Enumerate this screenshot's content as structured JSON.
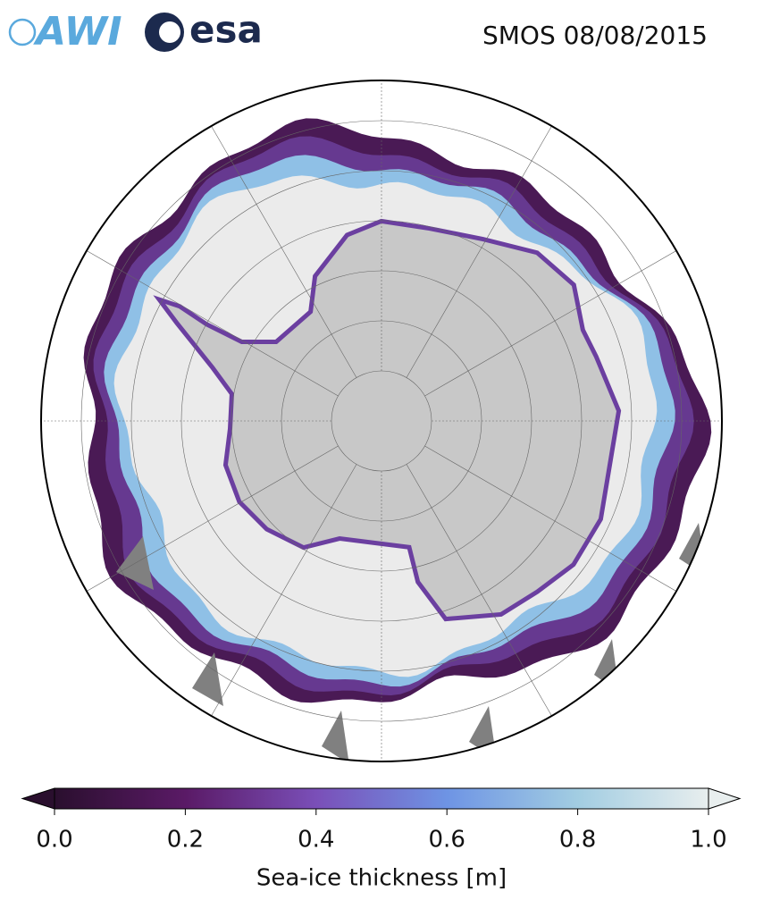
{
  "logos": {
    "awi": "AWI",
    "esa": "esa"
  },
  "title": "SMOS 08/08/2015",
  "colorbar": {
    "label": "Sea-ice thickness [m]",
    "lim": [
      0,
      1
    ],
    "ticks": [
      {
        "value": 0,
        "label": "0.0"
      },
      {
        "value": 0.2,
        "label": "0.2"
      },
      {
        "value": 0.4,
        "label": "0.4"
      },
      {
        "value": 0.6,
        "label": "0.6"
      },
      {
        "value": 0.8,
        "label": "0.8"
      },
      {
        "value": 1,
        "label": "1.0"
      }
    ],
    "colormap": [
      "#2a0f2e",
      "#5a1a66",
      "#7a4fb8",
      "#6e94e4",
      "#a2cde2",
      "#e8eeee"
    ]
  }
}
